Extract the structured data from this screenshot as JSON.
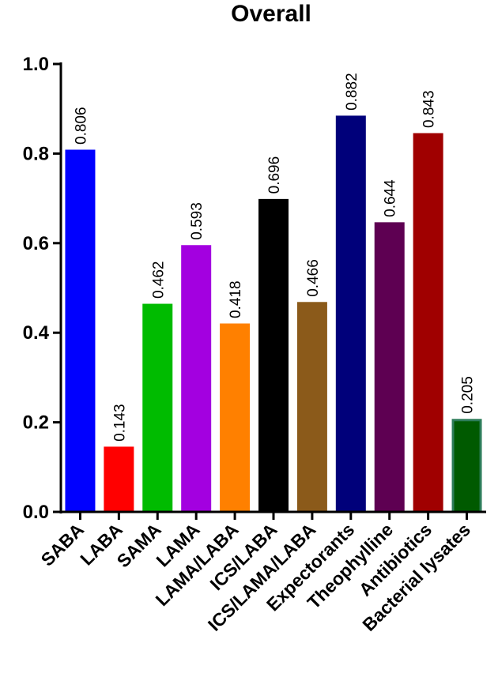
{
  "chart_data": {
    "type": "bar",
    "title": "Overall",
    "xlabel": "",
    "ylabel": "",
    "ylim": [
      0,
      1.0
    ],
    "yticks": [
      "0.0",
      "0.2",
      "0.4",
      "0.6",
      "0.8",
      "1.0"
    ],
    "categories": [
      "SABA",
      "LABA",
      "SAMA",
      "LAMA",
      "LAMA/LABA",
      "ICS/LABA",
      "ICS/LAMA/LABA",
      "Expectorants",
      "Theophylline",
      "Antibiotics",
      "Bacterial lysates"
    ],
    "values": [
      0.806,
      0.143,
      0.462,
      0.593,
      0.418,
      0.696,
      0.466,
      0.882,
      0.644,
      0.843,
      0.205
    ],
    "value_labels": [
      "0.806",
      "0.143",
      "0.462",
      "0.593",
      "0.418",
      "0.696",
      "0.466",
      "0.882",
      "0.644",
      "0.843",
      "0.205"
    ],
    "colors": [
      "#0000ff",
      "#ff0000",
      "#00bb00",
      "#a300e0",
      "#ff8000",
      "#000000",
      "#8b5a1a",
      "#00007a",
      "#5e0052",
      "#a00000",
      "#005a00"
    ],
    "edge_colors": [
      "#0000ff",
      "#ff0000",
      "#00bb00",
      "#a300e0",
      "#ff8000",
      "#000000",
      "#8b5a1a",
      "#00007a",
      "#5e0052",
      "#a00000",
      "#2e7d5a"
    ],
    "grid": false,
    "legend": "none"
  }
}
